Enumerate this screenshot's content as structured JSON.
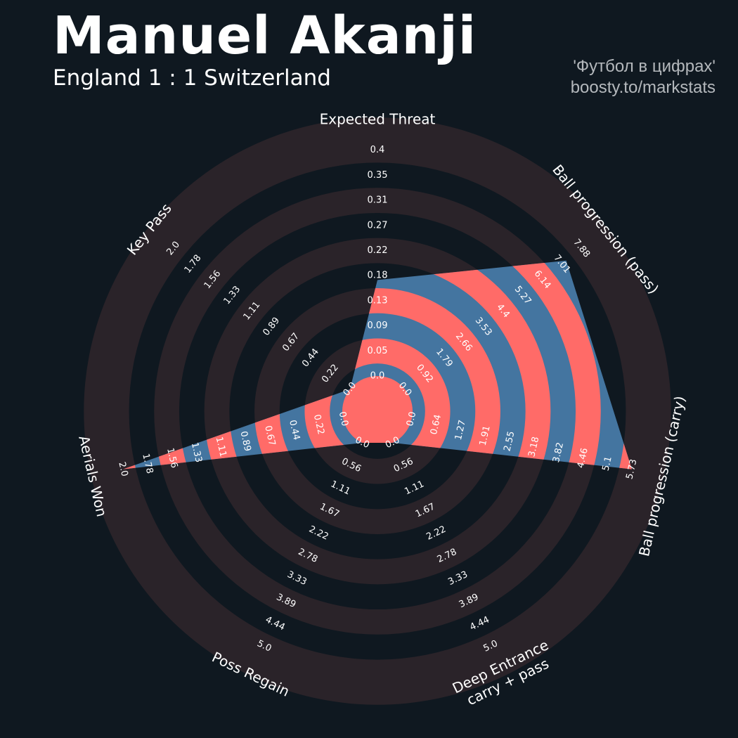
{
  "header": {
    "title": "Manuel Akanji",
    "subtitle": "England 1 : 1 Switzerland"
  },
  "credit": {
    "line1": "'Футбол в цифрах'",
    "line2": "boosty.to/markstats"
  },
  "colors": {
    "background": "#0f1820",
    "ring": "#2a2329",
    "polygon": "#4475a0",
    "band": "#ff6b68",
    "text": "#ffffff",
    "credit": "#b4b8bc"
  },
  "chart_data": {
    "type": "radar",
    "title": "Manuel Akanji",
    "subtitle": "England 1 : 1 Switzerland",
    "axes": [
      {
        "label": "Expected Threat",
        "range": [
          0.0,
          0.4
        ],
        "ticks": [
          "0.0",
          "0.05",
          "0.09",
          "0.13",
          "0.18",
          "0.22",
          "0.27",
          "0.31",
          "0.35",
          "0.4"
        ],
        "value": 0.17
      },
      {
        "label": "Ball progression (pass)",
        "range": [
          0.0,
          7.88
        ],
        "ticks": [
          "0.0",
          "0.92",
          "1.79",
          "2.66",
          "3.53",
          "4.4",
          "5.27",
          "6.14",
          "7.01",
          "7.88"
        ],
        "value": 7.2
      },
      {
        "label": "Ball progression (carry)",
        "range": [
          0.0,
          5.73
        ],
        "ticks": [
          "0.0",
          "0.64",
          "1.27",
          "1.91",
          "2.55",
          "3.18",
          "3.82",
          "4.46",
          "5.1",
          "5.73"
        ],
        "value": 5.73
      },
      {
        "label": "Deep Entrance\ncarry + pass",
        "range": [
          0.0,
          5.0
        ],
        "ticks": [
          "0.0",
          "0.56",
          "1.11",
          "1.67",
          "2.22",
          "2.78",
          "3.33",
          "3.89",
          "4.44",
          "5.0"
        ],
        "value": 0.0
      },
      {
        "label": "Poss Regain",
        "range": [
          0.0,
          5.0
        ],
        "ticks": [
          "0.0",
          "0.56",
          "1.11",
          "1.67",
          "2.22",
          "2.78",
          "3.33",
          "3.89",
          "4.44",
          "5.0"
        ],
        "value": 0.0
      },
      {
        "label": "Aerials Won",
        "range": [
          0.0,
          2.0
        ],
        "ticks": [
          "0.0",
          "0.22",
          "0.44",
          "0.67",
          "0.89",
          "1.11",
          "1.33",
          "1.56",
          "1.78",
          "2.0"
        ],
        "value": 2.0
      },
      {
        "label": "Key Pass",
        "range": [
          0.0,
          2.0
        ],
        "ticks": [
          "0.0",
          "0.22",
          "0.44",
          "0.67",
          "0.89",
          "1.11",
          "1.33",
          "1.56",
          "1.78",
          "2.0"
        ],
        "value": 0.0
      }
    ]
  }
}
